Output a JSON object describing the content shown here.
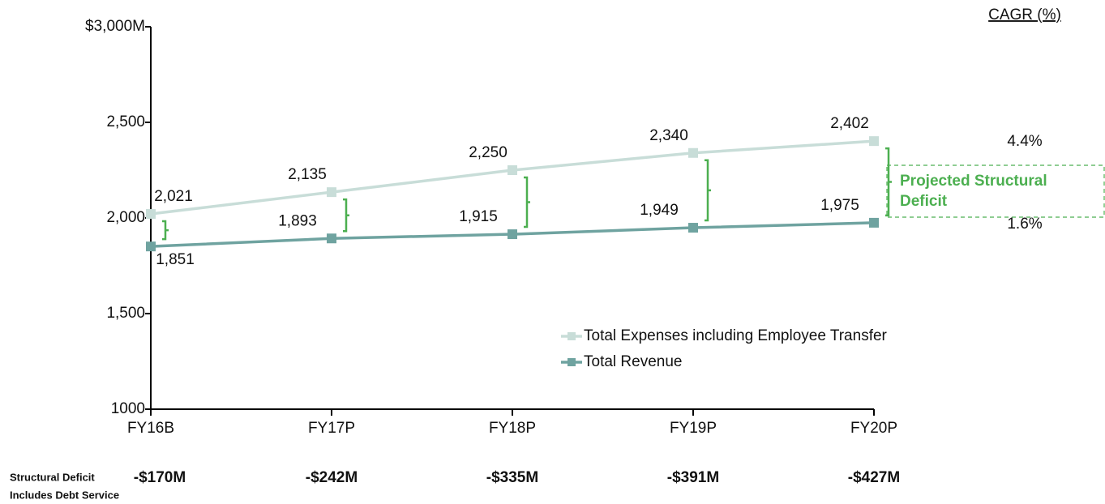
{
  "chart_data": {
    "type": "line",
    "categories": [
      "FY16B",
      "FY17P",
      "FY18P",
      "FY19P",
      "FY20P"
    ],
    "series": [
      {
        "name": "Total Expenses including Employee Transfer",
        "color": "#c8ddd8",
        "values": [
          2021,
          2135,
          2250,
          2340,
          2402
        ],
        "value_labels": [
          "2,021",
          "2,135",
          "2,250",
          "2,340",
          "2,402"
        ],
        "cagr": "4.4%"
      },
      {
        "name": "Total Revenue",
        "color": "#6fa3a0",
        "values": [
          1851,
          1893,
          1915,
          1949,
          1975
        ],
        "value_labels": [
          "1,851",
          "1,893",
          "1,915",
          "1,949",
          "1,975"
        ],
        "cagr": "1.6%"
      }
    ],
    "ylim": [
      1000,
      3000
    ],
    "yticks": [
      1000,
      {
        "value": 1500,
        "label": "1,500"
      },
      {
        "value": 2000,
        "label": "2,000"
      },
      {
        "value": 2500,
        "label": "2,500"
      },
      {
        "value": 3000,
        "label": "$3,000M"
      }
    ],
    "yticks_fix": null,
    "cagr_title": "CAGR (%)",
    "annotation": {
      "lines": [
        "Projected Structural",
        "Deficit"
      ],
      "color": "#4caf50"
    },
    "deficits": {
      "label": [
        "Structural Deficit",
        "Includes Debt Service"
      ],
      "values": [
        -170,
        -242,
        -335,
        -391,
        -427
      ],
      "value_labels": [
        "-$170M",
        "-$242M",
        "-$335M",
        "-$391M",
        "-$427M"
      ]
    }
  }
}
